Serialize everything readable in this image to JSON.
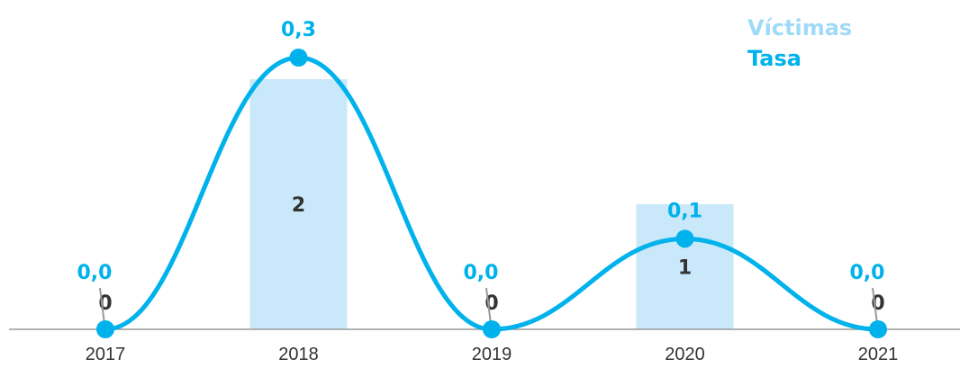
{
  "colors": {
    "victimas": "#c9e8f9",
    "victimas_legend": "#9fdaf6",
    "tasa": "#00b2ec",
    "axis": "#999999",
    "text": "#333333"
  },
  "legend": {
    "victimas": "Víctimas",
    "tasa": "Tasa"
  },
  "chart_data": {
    "type": "bar",
    "categories": [
      "2017",
      "2018",
      "2019",
      "2020",
      "2021"
    ],
    "series": [
      {
        "name": "Víctimas",
        "type": "bar",
        "values": [
          0,
          2,
          0,
          1,
          0
        ],
        "labels": [
          "0",
          "2",
          "0",
          "1",
          "0"
        ]
      },
      {
        "name": "Tasa",
        "type": "line",
        "smooth": true,
        "values": [
          0.0,
          0.3,
          0.0,
          0.1,
          0.0
        ],
        "labels": [
          "0,0",
          "0,3",
          "0,0",
          "0,1",
          "0,0"
        ]
      }
    ],
    "victimas_ylim": [
      0,
      2.15
    ],
    "tasa_ylim": [
      0,
      0.3
    ],
    "grid": false,
    "legend_position": "top-right"
  }
}
